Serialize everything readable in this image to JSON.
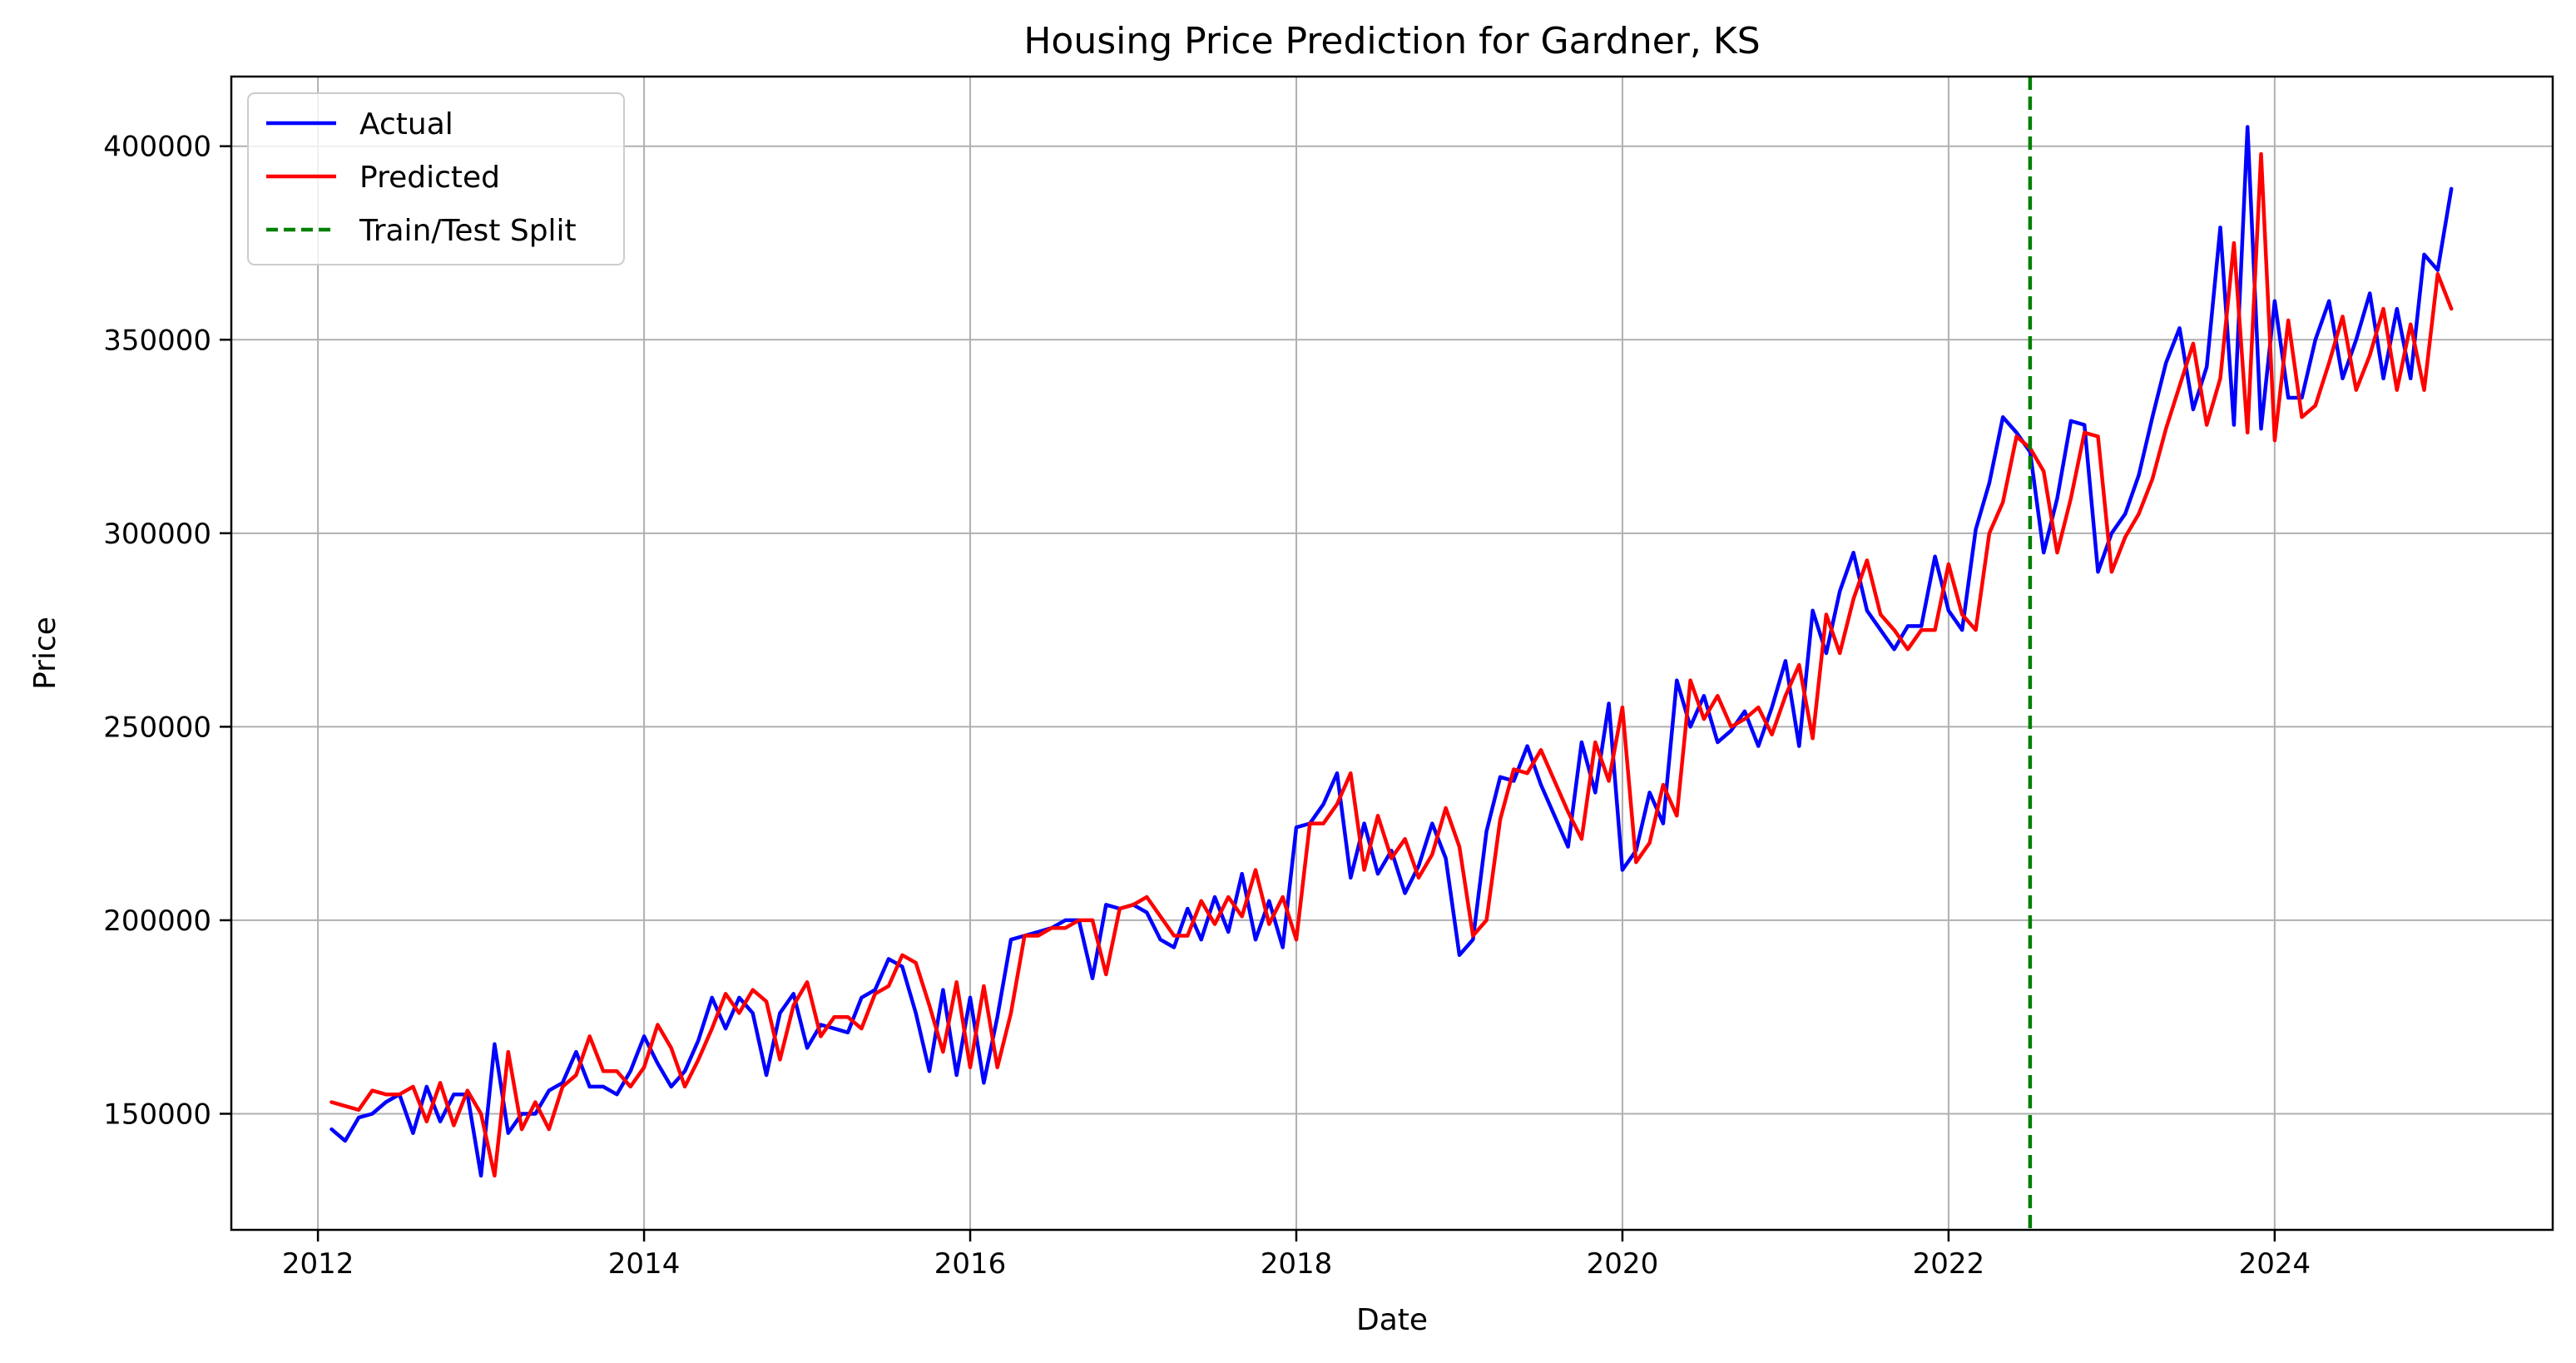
{
  "chart_data": {
    "type": "line",
    "title": "Housing Price Prediction for Gardner, KS",
    "xlabel": "Date",
    "ylabel": "Price",
    "xlim": [
      "2011-06-20",
      "2025-09-15"
    ],
    "ylim": [
      120000,
      418000
    ],
    "x_ticks": [
      "2012",
      "2014",
      "2016",
      "2018",
      "2020",
      "2022",
      "2024"
    ],
    "y_ticks": [
      150000,
      200000,
      250000,
      300000,
      350000,
      400000
    ],
    "grid": true,
    "legend_position": "top-left",
    "colors": {
      "actual": "#0000ff",
      "predicted": "#ff0000",
      "split": "#008000"
    },
    "split": {
      "name": "Train/Test Split",
      "x": "2022-07",
      "color": "#008000",
      "style": "dashed"
    },
    "series": [
      {
        "name": "Actual",
        "color": "#0000ff",
        "x": [
          "2012-02",
          "2012-03",
          "2012-04",
          "2012-05",
          "2012-06",
          "2012-07",
          "2012-08",
          "2012-09",
          "2012-10",
          "2012-11",
          "2012-12",
          "2013-01",
          "2013-02",
          "2013-03",
          "2013-04",
          "2013-05",
          "2013-06",
          "2013-07",
          "2013-08",
          "2013-09",
          "2013-10",
          "2013-11",
          "2013-12",
          "2014-01",
          "2014-02",
          "2014-03",
          "2014-04",
          "2014-05",
          "2014-06",
          "2014-07",
          "2014-08",
          "2014-09",
          "2014-10",
          "2014-11",
          "2014-12",
          "2015-01",
          "2015-02",
          "2015-03",
          "2015-04",
          "2015-05",
          "2015-06",
          "2015-07",
          "2015-08",
          "2015-09",
          "2015-10",
          "2015-11",
          "2015-12",
          "2016-01",
          "2016-02",
          "2016-03",
          "2016-04",
          "2016-05",
          "2016-06",
          "2016-07",
          "2016-08",
          "2016-09",
          "2016-10",
          "2016-11",
          "2016-12",
          "2017-01",
          "2017-02",
          "2017-03",
          "2017-04",
          "2017-05",
          "2017-06",
          "2017-07",
          "2017-08",
          "2017-09",
          "2017-10",
          "2017-11",
          "2017-12",
          "2018-01",
          "2018-02",
          "2018-03",
          "2018-04",
          "2018-05",
          "2018-06",
          "2018-07",
          "2018-08",
          "2018-09",
          "2018-10",
          "2018-11",
          "2018-12",
          "2019-01",
          "2019-02",
          "2019-03",
          "2019-04",
          "2019-05",
          "2019-06",
          "2019-07",
          "2019-08",
          "2019-09",
          "2019-10",
          "2019-11",
          "2019-12",
          "2020-01",
          "2020-02",
          "2020-03",
          "2020-04",
          "2020-05",
          "2020-06",
          "2020-07",
          "2020-08",
          "2020-09",
          "2020-10",
          "2020-11",
          "2020-12",
          "2021-01",
          "2021-02",
          "2021-03",
          "2021-04",
          "2021-05",
          "2021-06",
          "2021-07",
          "2021-08",
          "2021-09",
          "2021-10",
          "2021-11",
          "2021-12",
          "2022-01",
          "2022-02",
          "2022-03",
          "2022-04",
          "2022-05",
          "2022-06",
          "2022-07",
          "2022-08",
          "2022-09",
          "2022-10",
          "2022-11",
          "2022-12",
          "2023-01",
          "2023-02",
          "2023-03",
          "2023-04",
          "2023-05",
          "2023-06",
          "2023-07",
          "2023-08",
          "2023-09",
          "2023-10",
          "2023-11",
          "2023-12",
          "2024-01",
          "2024-02",
          "2024-03",
          "2024-04",
          "2024-05",
          "2024-06",
          "2024-07",
          "2024-08",
          "2024-09",
          "2024-10",
          "2024-11",
          "2024-12",
          "2025-01",
          "2025-02"
        ],
        "values": [
          146000,
          143000,
          149000,
          150000,
          153000,
          155000,
          145000,
          157000,
          148000,
          155000,
          155000,
          134000,
          168000,
          145000,
          150000,
          150000,
          156000,
          158000,
          166000,
          157000,
          157000,
          155000,
          161000,
          170000,
          163000,
          157000,
          161000,
          169000,
          180000,
          172000,
          180000,
          176000,
          160000,
          176000,
          181000,
          167000,
          173000,
          172000,
          171000,
          180000,
          182000,
          190000,
          188000,
          176000,
          161000,
          182000,
          160000,
          180000,
          158000,
          175000,
          195000,
          196000,
          197000,
          198000,
          200000,
          200000,
          185000,
          204000,
          203000,
          204000,
          202000,
          195000,
          193000,
          203000,
          195000,
          206000,
          197000,
          212000,
          195000,
          205000,
          193000,
          224000,
          225000,
          230000,
          238000,
          211000,
          225000,
          212000,
          218000,
          207000,
          214000,
          225000,
          216000,
          191000,
          195000,
          223000,
          237000,
          236000,
          245000,
          235000,
          227000,
          219000,
          246000,
          233000,
          256000,
          213000,
          218000,
          233000,
          225000,
          262000,
          250000,
          258000,
          246000,
          249000,
          254000,
          245000,
          255000,
          267000,
          245000,
          280000,
          269000,
          285000,
          295000,
          280000,
          275000,
          270000,
          276000,
          276000,
          294000,
          280000,
          275000,
          301000,
          313000,
          330000,
          326000,
          321000,
          295000,
          309000,
          329000,
          328000,
          290000,
          300000,
          305000,
          315000,
          330000,
          344000,
          353000,
          332000,
          343000,
          379000,
          328000,
          405000,
          327000,
          360000,
          335000,
          335000,
          350000,
          360000,
          340000,
          350000,
          362000,
          340000,
          358000,
          340000,
          372000,
          368000,
          389000
        ]
      },
      {
        "name": "Predicted",
        "color": "#ff0000",
        "x": [
          "2012-02",
          "2012-03",
          "2012-04",
          "2012-05",
          "2012-06",
          "2012-07",
          "2012-08",
          "2012-09",
          "2012-10",
          "2012-11",
          "2012-12",
          "2013-01",
          "2013-02",
          "2013-03",
          "2013-04",
          "2013-05",
          "2013-06",
          "2013-07",
          "2013-08",
          "2013-09",
          "2013-10",
          "2013-11",
          "2013-12",
          "2014-01",
          "2014-02",
          "2014-03",
          "2014-04",
          "2014-05",
          "2014-06",
          "2014-07",
          "2014-08",
          "2014-09",
          "2014-10",
          "2014-11",
          "2014-12",
          "2015-01",
          "2015-02",
          "2015-03",
          "2015-04",
          "2015-05",
          "2015-06",
          "2015-07",
          "2015-08",
          "2015-09",
          "2015-10",
          "2015-11",
          "2015-12",
          "2016-01",
          "2016-02",
          "2016-03",
          "2016-04",
          "2016-05",
          "2016-06",
          "2016-07",
          "2016-08",
          "2016-09",
          "2016-10",
          "2016-11",
          "2016-12",
          "2017-01",
          "2017-02",
          "2017-03",
          "2017-04",
          "2017-05",
          "2017-06",
          "2017-07",
          "2017-08",
          "2017-09",
          "2017-10",
          "2017-11",
          "2017-12",
          "2018-01",
          "2018-02",
          "2018-03",
          "2018-04",
          "2018-05",
          "2018-06",
          "2018-07",
          "2018-08",
          "2018-09",
          "2018-10",
          "2018-11",
          "2018-12",
          "2019-01",
          "2019-02",
          "2019-03",
          "2019-04",
          "2019-05",
          "2019-06",
          "2019-07",
          "2019-08",
          "2019-09",
          "2019-10",
          "2019-11",
          "2019-12",
          "2020-01",
          "2020-02",
          "2020-03",
          "2020-04",
          "2020-05",
          "2020-06",
          "2020-07",
          "2020-08",
          "2020-09",
          "2020-10",
          "2020-11",
          "2020-12",
          "2021-01",
          "2021-02",
          "2021-03",
          "2021-04",
          "2021-05",
          "2021-06",
          "2021-07",
          "2021-08",
          "2021-09",
          "2021-10",
          "2021-11",
          "2021-12",
          "2022-01",
          "2022-02",
          "2022-03",
          "2022-04",
          "2022-05",
          "2022-06",
          "2022-07",
          "2022-08",
          "2022-09",
          "2022-10",
          "2022-11",
          "2022-12",
          "2023-01",
          "2023-02",
          "2023-03",
          "2023-04",
          "2023-05",
          "2023-06",
          "2023-07",
          "2023-08",
          "2023-09",
          "2023-10",
          "2023-11",
          "2023-12",
          "2024-01",
          "2024-02",
          "2024-03",
          "2024-04",
          "2024-05",
          "2024-06",
          "2024-07",
          "2024-08",
          "2024-09",
          "2024-10",
          "2024-11",
          "2024-12",
          "2025-01",
          "2025-02"
        ],
        "values": [
          153000,
          152000,
          151000,
          156000,
          155000,
          155000,
          157000,
          148000,
          158000,
          147000,
          156000,
          150000,
          134000,
          166000,
          146000,
          153000,
          146000,
          157000,
          160000,
          170000,
          161000,
          161000,
          157000,
          162000,
          173000,
          167000,
          157000,
          164000,
          172000,
          181000,
          176000,
          182000,
          179000,
          164000,
          178000,
          184000,
          170000,
          175000,
          175000,
          172000,
          181000,
          183000,
          191000,
          189000,
          178000,
          166000,
          184000,
          162000,
          183000,
          162000,
          176000,
          196000,
          196000,
          198000,
          198000,
          200000,
          200000,
          186000,
          203000,
          204000,
          206000,
          201000,
          196000,
          196000,
          205000,
          199000,
          206000,
          201000,
          213000,
          199000,
          206000,
          195000,
          225000,
          225000,
          230000,
          238000,
          213000,
          227000,
          216000,
          221000,
          211000,
          217000,
          229000,
          219000,
          196000,
          200000,
          226000,
          239000,
          238000,
          244000,
          236000,
          228000,
          221000,
          246000,
          236000,
          255000,
          215000,
          220000,
          235000,
          227000,
          262000,
          252000,
          258000,
          250000,
          252000,
          255000,
          248000,
          258000,
          266000,
          247000,
          279000,
          269000,
          283000,
          293000,
          279000,
          275000,
          270000,
          275000,
          275000,
          292000,
          279000,
          275000,
          300000,
          308000,
          325000,
          322000,
          316000,
          295000,
          309000,
          326000,
          325000,
          290000,
          299000,
          305000,
          314000,
          327000,
          338000,
          349000,
          328000,
          340000,
          375000,
          326000,
          398000,
          324000,
          355000,
          330000,
          333000,
          344000,
          356000,
          337000,
          346000,
          358000,
          337000,
          354000,
          337000,
          367000,
          358000
        ]
      }
    ]
  }
}
